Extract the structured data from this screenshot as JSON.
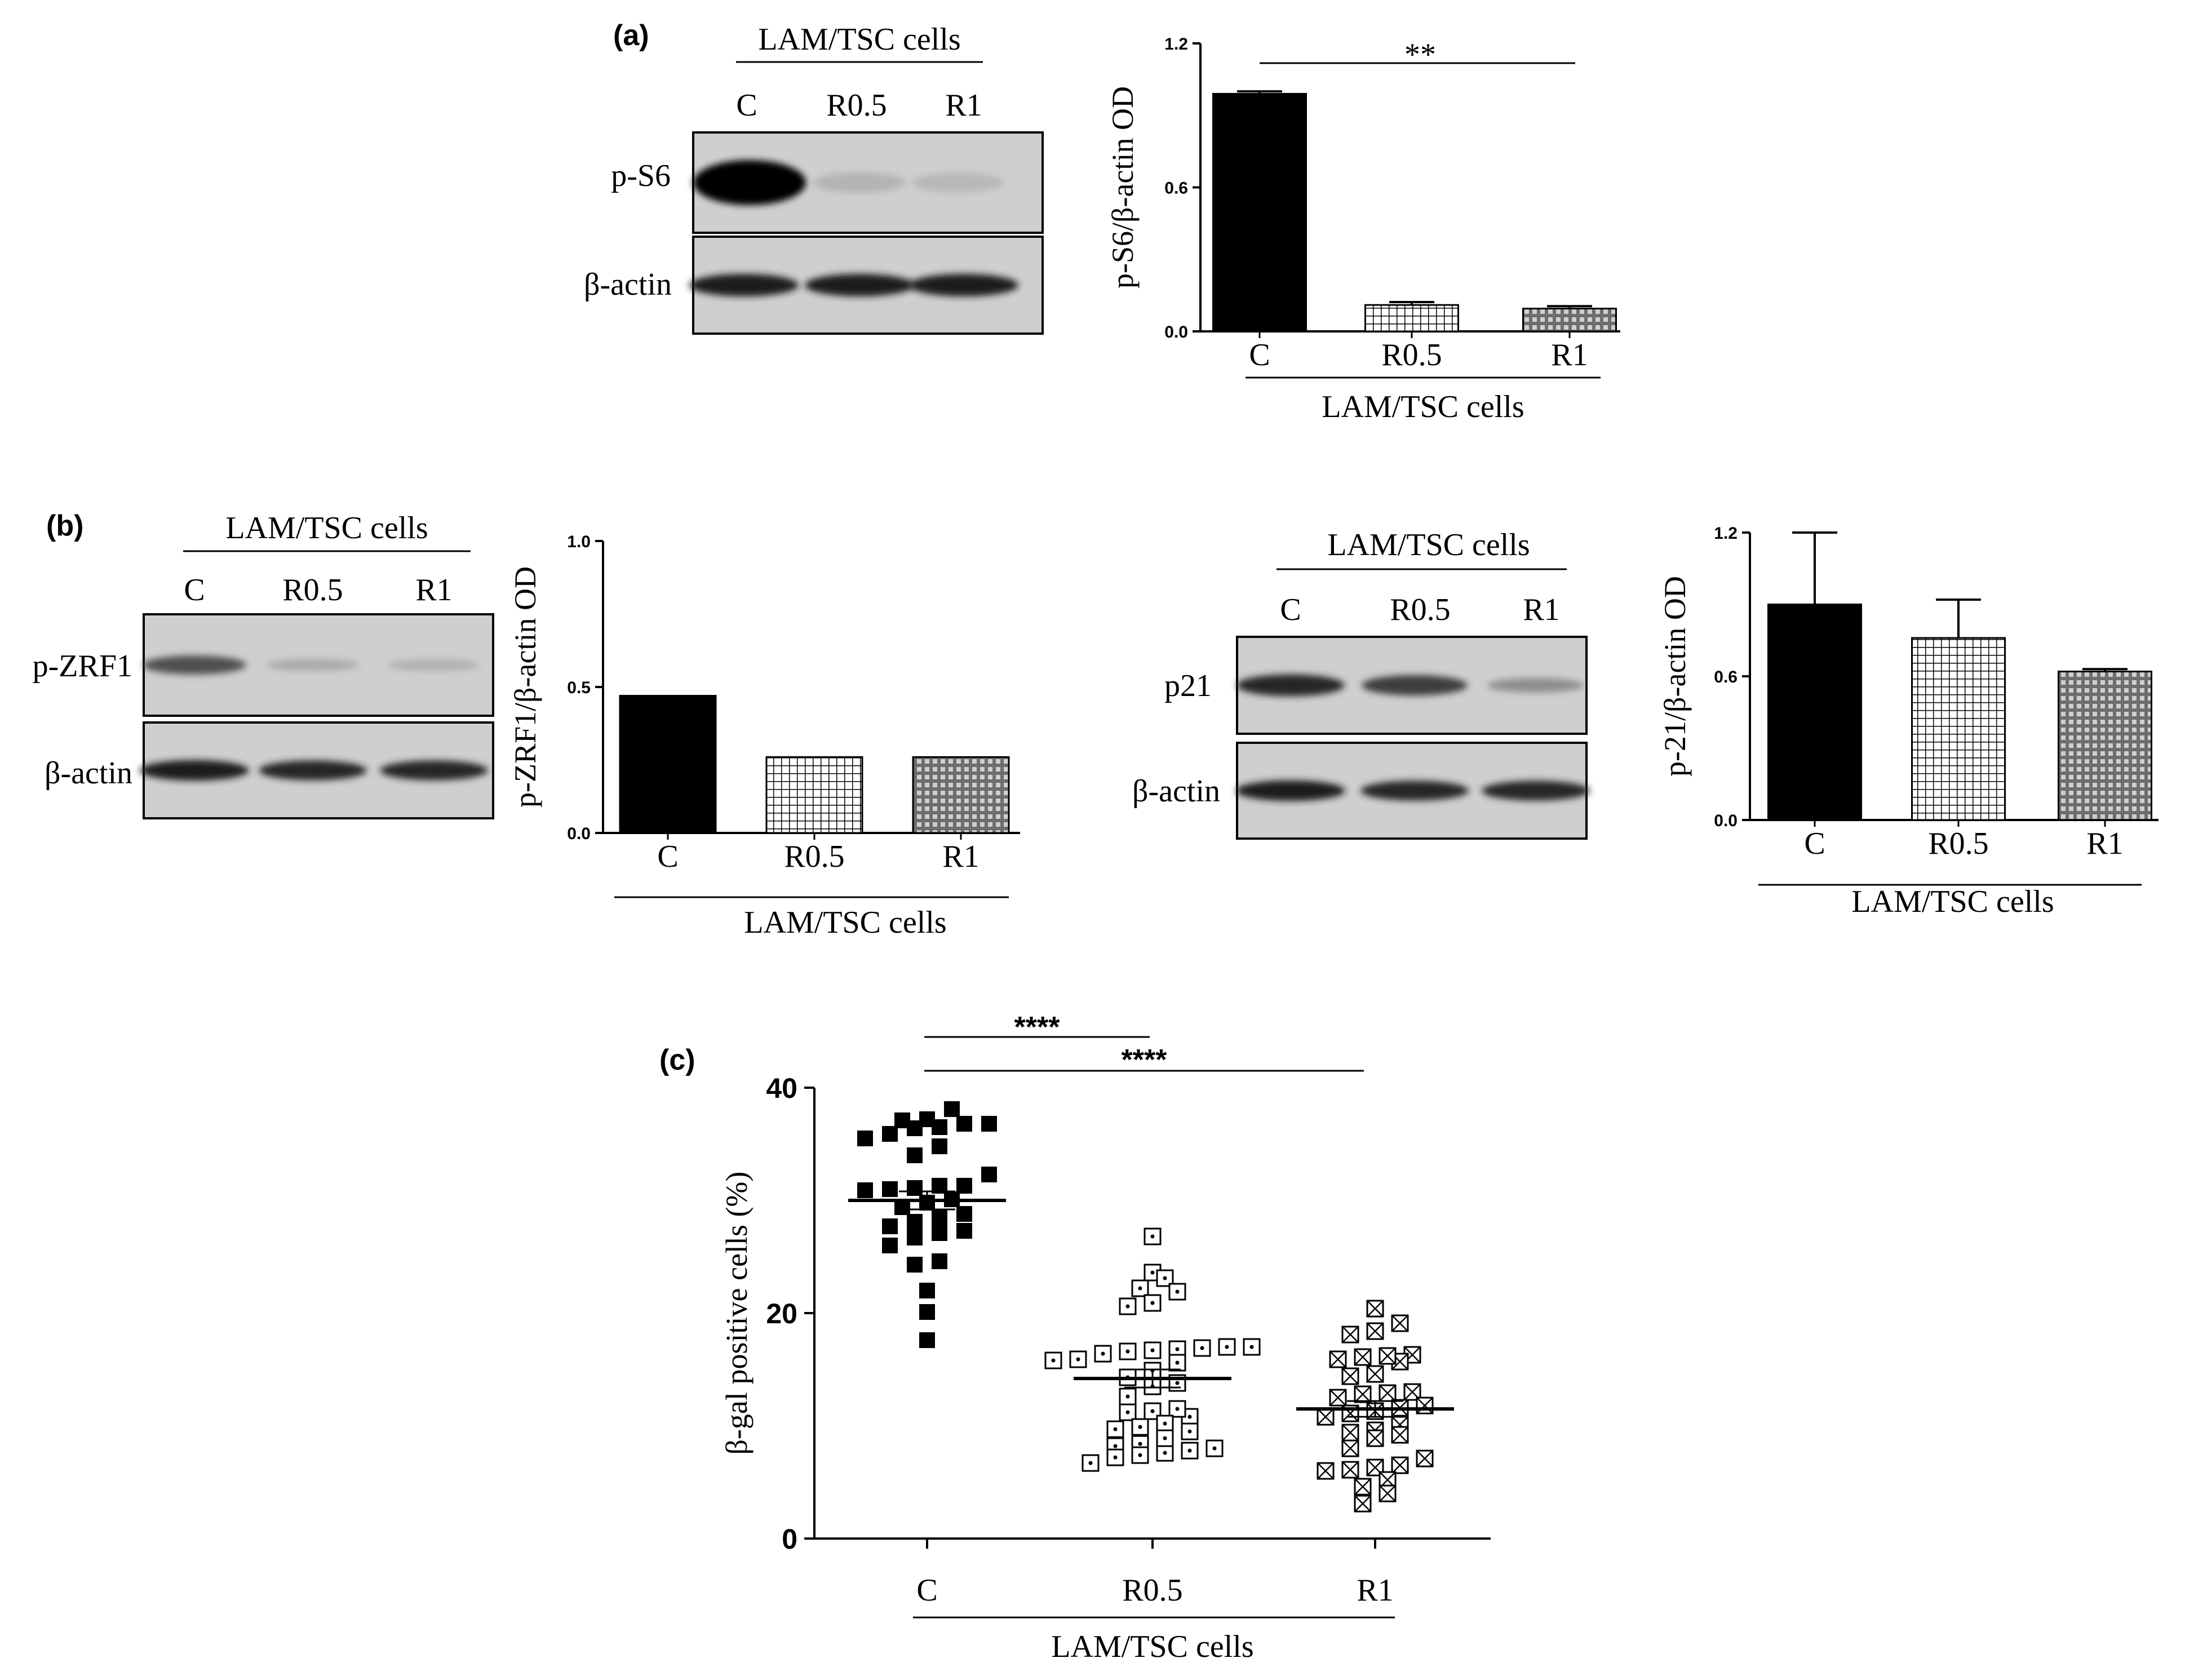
{
  "colors": {
    "ink": "#000000",
    "blot_background": "#cfcfcf",
    "background": "#ffffff"
  },
  "panels": {
    "a": {
      "label": "(a)",
      "blot": {
        "header": "LAM/TSC cells",
        "lanes": [
          "C",
          "R0.5",
          "R1"
        ],
        "rows": [
          {
            "label": "p-S6",
            "band_intensity": [
              1.0,
              0.1,
              0.08
            ]
          },
          {
            "label": "β-actin",
            "band_intensity": [
              0.85,
              0.85,
              0.85
            ]
          }
        ]
      },
      "significance": "**",
      "group_label": "LAM/TSC cells"
    },
    "b": {
      "label": "(b)",
      "blot_left": {
        "header": "LAM/TSC cells",
        "lanes": [
          "C",
          "R0.5",
          "R1"
        ],
        "rows": [
          {
            "label": "p-ZRF1",
            "band_intensity": [
              0.6,
              0.15,
              0.12
            ]
          },
          {
            "label": "β-actin",
            "band_intensity": [
              0.85,
              0.8,
              0.8
            ]
          }
        ]
      },
      "blot_right": {
        "header": "LAM/TSC cells",
        "lanes": [
          "C",
          "R0.5",
          "R1"
        ],
        "rows": [
          {
            "label": "p21",
            "band_intensity": [
              0.8,
              0.7,
              0.3
            ]
          },
          {
            "label": "β-actin",
            "band_intensity": [
              0.85,
              0.8,
              0.8
            ]
          }
        ]
      },
      "group_label_left": "LAM/TSC cells",
      "group_label_right": "LAM/TSC cells"
    },
    "c": {
      "label": "(c)",
      "significance": [
        "****",
        "****"
      ],
      "group_label": "LAM/TSC cells"
    }
  },
  "chart_data": [
    {
      "type": "bar",
      "categories": [
        "C",
        "R0.5",
        "R1"
      ],
      "values": [
        0.99,
        0.11,
        0.095
      ],
      "errors": [
        0.01,
        0.012,
        0.01
      ],
      "ylabel": "p-S6/β-actin OD",
      "ylim": [
        0,
        1.2
      ],
      "yticks": [
        "0.0",
        "0.6",
        "1.2"
      ],
      "fills": [
        "solid",
        "grid",
        "dots"
      ]
    },
    {
      "type": "bar",
      "categories": [
        "C",
        "R0.5",
        "R1"
      ],
      "values": [
        0.47,
        0.26,
        0.26
      ],
      "ylabel": "p-ZRF1/β-actin OD",
      "ylim": [
        0,
        1.0
      ],
      "yticks": [
        "0.0",
        "0.5",
        "1.0"
      ],
      "fills": [
        "solid",
        "grid",
        "dots"
      ]
    },
    {
      "type": "bar",
      "categories": [
        "C",
        "R0.5",
        "R1"
      ],
      "values": [
        0.9,
        0.76,
        0.62
      ],
      "errors": [
        0.3,
        0.16,
        0.01
      ],
      "ylabel": "p-21/β-actin OD",
      "ylim": [
        0,
        1.2
      ],
      "yticks": [
        "0.0",
        "0.6",
        "1.2"
      ],
      "fills": [
        "solid",
        "grid",
        "dots"
      ]
    },
    {
      "type": "scatter",
      "categories": [
        "C",
        "R0.5",
        "R1"
      ],
      "ylabel": "β-gal positive cells (%)",
      "ylim": [
        0,
        40
      ],
      "yticks": [
        "0",
        "20",
        "40"
      ],
      "markers": [
        "filled-square",
        "dot-square",
        "cross-square"
      ],
      "means": [
        30,
        14.2,
        11.5
      ],
      "sems": [
        0.8,
        0.8,
        0.7
      ],
      "series": [
        {
          "values": [
            37.1,
            36.8,
            36.4,
            35.9,
            34.8,
            34.0,
            38.1,
            36.5,
            36.8,
            37.2,
            35.5,
            32.3,
            31.3,
            31.0,
            30.9,
            31.1,
            31.3,
            30.1,
            29.8,
            29.4,
            28.5,
            28.8,
            27.1,
            26.7,
            27.3,
            26.0,
            27.7,
            28.1,
            24.6,
            24.3,
            22.0,
            20.1,
            17.6
          ]
        },
        {
          "values": [
            26.8,
            23.6,
            23.1,
            22.2,
            21.9,
            20.6,
            20.9,
            17.0,
            16.8,
            16.6,
            16.9,
            17.0,
            16.7,
            15.6,
            15.8,
            16.4,
            15.9,
            14.3,
            13.8,
            14.9,
            13.5,
            12.6,
            11.2,
            10.8,
            11.5,
            11.3,
            10.2,
            9.5,
            9.7,
            9.9,
            8.2,
            8.0,
            8.4,
            7.4,
            7.2,
            6.7,
            7.6,
            7.8,
            8.9
          ]
        },
        {
          "values": [
            20.4,
            19.1,
            18.4,
            18.1,
            16.3,
            16.1,
            15.7,
            15.9,
            16.2,
            14.6,
            14.4,
            13.0,
            12.9,
            12.8,
            12.5,
            11.8,
            11.3,
            11.6,
            11.1,
            10.8,
            10.1,
            9.6,
            9.4,
            9.2,
            8.9,
            8.0,
            7.1,
            6.5,
            6.3,
            6.1,
            6.0,
            5.2,
            4.6,
            4.0,
            3.1
          ]
        }
      ]
    }
  ]
}
